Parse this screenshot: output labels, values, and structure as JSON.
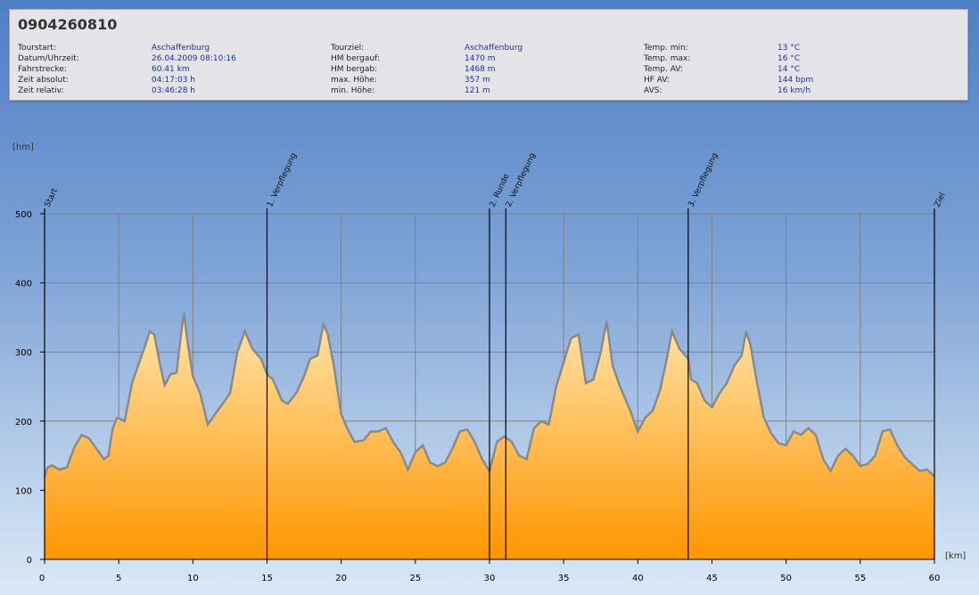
{
  "header": {
    "title": "0904260810",
    "columns": [
      [
        {
          "label": "Tourstart:",
          "value": "Aschaffenburg"
        },
        {
          "label": "Datum/Uhrzeit:",
          "value": "26.04.2009 08:10:16"
        },
        {
          "label": "Fahrstrecke:",
          "value": "60.41 km"
        },
        {
          "label": "Zeit absolut:",
          "value": "04:17:03 h"
        },
        {
          "label": "Zeit relativ:",
          "value": "03:46:28 h"
        }
      ],
      [
        {
          "label": "Tourziel:",
          "value": "Aschaffenburg"
        },
        {
          "label": "HM bergauf:",
          "value": "1470 m"
        },
        {
          "label": "HM bergab:",
          "value": "1468 m"
        },
        {
          "label": "max. Höhe:",
          "value": "357 m"
        },
        {
          "label": "min. Höhe:",
          "value": "121 m"
        }
      ],
      [
        {
          "label": "Temp. min:",
          "value": "13 °C"
        },
        {
          "label": "Temp. max:",
          "value": "16 °C"
        },
        {
          "label": "Temp. AV:",
          "value": "14 °C"
        },
        {
          "label": "HF AV:",
          "value": "144 bpm"
        },
        {
          "label": "AVS:",
          "value": "16 km/h"
        }
      ]
    ]
  },
  "chart_data": {
    "type": "area",
    "ylabel": "[hm]",
    "xlabel": "[km]",
    "xlim": [
      0,
      60
    ],
    "ylim": [
      0,
      500
    ],
    "xticks": [
      0,
      5,
      10,
      15,
      20,
      25,
      30,
      35,
      40,
      45,
      50,
      55,
      60
    ],
    "yticks": [
      0,
      100,
      200,
      300,
      400,
      500
    ],
    "grid": true,
    "colors": {
      "fill_top": "#ffe6ad",
      "fill_bottom": "#ff9500",
      "line": "#8a8a8a",
      "grid": "#808080"
    },
    "markers": [
      {
        "x": 0,
        "label": "Start"
      },
      {
        "x": 15,
        "label": "1. Verpflegung"
      },
      {
        "x": 30,
        "label": "2. Runde"
      },
      {
        "x": 31.1,
        "label": "2. Verpflegung"
      },
      {
        "x": 43.4,
        "label": "3. Verpflegung"
      },
      {
        "x": 60,
        "label": "Ziel"
      }
    ],
    "series": [
      {
        "points": [
          [
            0,
            120
          ],
          [
            0.2,
            133
          ],
          [
            0.5,
            136
          ],
          [
            1,
            130
          ],
          [
            1.5,
            133
          ],
          [
            2,
            162
          ],
          [
            2.5,
            180
          ],
          [
            3,
            175
          ],
          [
            3.5,
            160
          ],
          [
            4,
            145
          ],
          [
            4.3,
            150
          ],
          [
            4.6,
            190
          ],
          [
            4.9,
            205
          ],
          [
            5.4,
            200
          ],
          [
            5.9,
            255
          ],
          [
            6.3,
            280
          ],
          [
            6.8,
            310
          ],
          [
            7.1,
            330
          ],
          [
            7.4,
            325
          ],
          [
            7.8,
            280
          ],
          [
            8.1,
            252
          ],
          [
            8.5,
            268
          ],
          [
            8.9,
            270
          ],
          [
            9.2,
            325
          ],
          [
            9.4,
            357
          ],
          [
            9.6,
            320
          ],
          [
            10,
            265
          ],
          [
            10.5,
            240
          ],
          [
            11,
            195
          ],
          [
            11.5,
            210
          ],
          [
            12,
            225
          ],
          [
            12.5,
            240
          ],
          [
            13,
            300
          ],
          [
            13.5,
            330
          ],
          [
            14,
            305
          ],
          [
            14.6,
            290
          ],
          [
            15,
            268
          ],
          [
            15.4,
            260
          ],
          [
            16,
            230
          ],
          [
            16.4,
            225
          ],
          [
            17,
            242
          ],
          [
            17.5,
            265
          ],
          [
            17.9,
            290
          ],
          [
            18.4,
            295
          ],
          [
            18.8,
            340
          ],
          [
            19.1,
            325
          ],
          [
            19.5,
            280
          ],
          [
            20,
            210
          ],
          [
            20.4,
            190
          ],
          [
            20.9,
            170
          ],
          [
            21.5,
            172
          ],
          [
            22,
            185
          ],
          [
            22.5,
            185
          ],
          [
            23,
            190
          ],
          [
            23.5,
            170
          ],
          [
            24,
            155
          ],
          [
            24.5,
            130
          ],
          [
            25,
            155
          ],
          [
            25.5,
            165
          ],
          [
            26,
            140
          ],
          [
            26.5,
            135
          ],
          [
            27,
            140
          ],
          [
            27.5,
            160
          ],
          [
            28,
            185
          ],
          [
            28.5,
            188
          ],
          [
            29,
            170
          ],
          [
            29.5,
            145
          ],
          [
            30,
            128
          ],
          [
            30.5,
            170
          ],
          [
            31,
            178
          ],
          [
            31.5,
            170
          ],
          [
            32,
            150
          ],
          [
            32.5,
            145
          ],
          [
            33,
            190
          ],
          [
            33.5,
            200
          ],
          [
            34,
            195
          ],
          [
            34.5,
            250
          ],
          [
            35,
            285
          ],
          [
            35.5,
            320
          ],
          [
            36,
            325
          ],
          [
            36.5,
            255
          ],
          [
            37,
            260
          ],
          [
            37.5,
            300
          ],
          [
            37.9,
            345
          ],
          [
            38.3,
            280
          ],
          [
            38.8,
            250
          ],
          [
            39.5,
            215
          ],
          [
            40,
            185
          ],
          [
            40.5,
            205
          ],
          [
            41,
            215
          ],
          [
            41.5,
            245
          ],
          [
            42,
            295
          ],
          [
            42.3,
            330
          ],
          [
            42.8,
            305
          ],
          [
            43.4,
            290
          ],
          [
            43.6,
            260
          ],
          [
            44,
            255
          ],
          [
            44.5,
            230
          ],
          [
            45,
            220
          ],
          [
            45.5,
            240
          ],
          [
            46,
            255
          ],
          [
            46.5,
            280
          ],
          [
            47,
            295
          ],
          [
            47.3,
            330
          ],
          [
            47.6,
            310
          ],
          [
            48,
            260
          ],
          [
            48.5,
            205
          ],
          [
            49,
            182
          ],
          [
            49.5,
            168
          ],
          [
            50,
            165
          ],
          [
            50.5,
            185
          ],
          [
            51,
            180
          ],
          [
            51.5,
            190
          ],
          [
            52,
            180
          ],
          [
            52.5,
            145
          ],
          [
            53,
            128
          ],
          [
            53.5,
            150
          ],
          [
            54,
            160
          ],
          [
            54.5,
            150
          ],
          [
            55,
            135
          ],
          [
            55.5,
            138
          ],
          [
            56,
            150
          ],
          [
            56.5,
            185
          ],
          [
            57,
            188
          ],
          [
            57.5,
            165
          ],
          [
            58,
            148
          ],
          [
            58.5,
            138
          ],
          [
            59,
            128
          ],
          [
            59.5,
            130
          ],
          [
            60,
            120
          ]
        ]
      }
    ]
  }
}
